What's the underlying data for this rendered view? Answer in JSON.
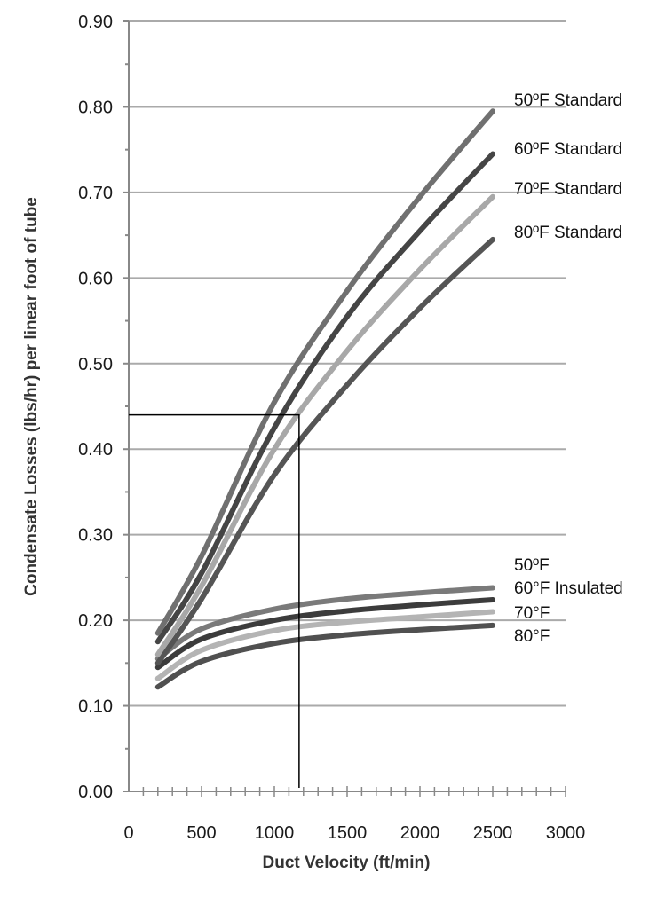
{
  "chart_data": {
    "type": "line",
    "title": "",
    "xlabel": "Duct Velocity (ft/min)",
    "ylabel": "Condensate Losses (lbs/hr) per linear foot of tube",
    "xlim": [
      0,
      3000
    ],
    "ylim": [
      0,
      0.9
    ],
    "x_ticks": [
      "0",
      "500",
      "1000",
      "1500",
      "2000",
      "2500",
      "3000"
    ],
    "y_ticks": [
      "0.00",
      "0.10",
      "0.20",
      "0.30",
      "0.40",
      "0.50",
      "0.60",
      "0.70",
      "0.80",
      "0.90"
    ],
    "grid": "horizontal",
    "series": [
      {
        "name": "50ºF Standard",
        "color": "#707070",
        "points": [
          [
            200,
            0.185
          ],
          [
            500,
            0.275
          ],
          [
            1000,
            0.455
          ],
          [
            1500,
            0.585
          ],
          [
            2000,
            0.695
          ],
          [
            2500,
            0.795
          ]
        ]
      },
      {
        "name": "60ºF Standard",
        "color": "#454545",
        "points": [
          [
            200,
            0.175
          ],
          [
            500,
            0.255
          ],
          [
            1000,
            0.425
          ],
          [
            1500,
            0.555
          ],
          [
            2000,
            0.655
          ],
          [
            2500,
            0.745
          ]
        ]
      },
      {
        "name": "70ºF Standard",
        "color": "#a8a8a8",
        "points": [
          [
            200,
            0.16
          ],
          [
            500,
            0.24
          ],
          [
            1000,
            0.4
          ],
          [
            1500,
            0.515
          ],
          [
            2000,
            0.61
          ],
          [
            2500,
            0.695
          ]
        ]
      },
      {
        "name": "80ºF Standard",
        "color": "#555555",
        "points": [
          [
            200,
            0.15
          ],
          [
            500,
            0.225
          ],
          [
            1000,
            0.37
          ],
          [
            1500,
            0.475
          ],
          [
            2000,
            0.565
          ],
          [
            2500,
            0.645
          ]
        ]
      },
      {
        "name": "50ºF",
        "color": "#7a7a7a",
        "points": [
          [
            200,
            0.155
          ],
          [
            500,
            0.19
          ],
          [
            1000,
            0.213
          ],
          [
            1500,
            0.225
          ],
          [
            2000,
            0.232
          ],
          [
            2500,
            0.238
          ]
        ]
      },
      {
        "name": "60°F Insulated",
        "color": "#3c3c3c",
        "points": [
          [
            200,
            0.145
          ],
          [
            500,
            0.178
          ],
          [
            1000,
            0.2
          ],
          [
            1500,
            0.211
          ],
          [
            2000,
            0.218
          ],
          [
            2500,
            0.224
          ]
        ]
      },
      {
        "name": "70°F",
        "color": "#b4b4b4",
        "points": [
          [
            200,
            0.132
          ],
          [
            500,
            0.165
          ],
          [
            1000,
            0.188
          ],
          [
            1500,
            0.198
          ],
          [
            2000,
            0.204
          ],
          [
            2500,
            0.21
          ]
        ]
      },
      {
        "name": "80°F",
        "color": "#505050",
        "points": [
          [
            200,
            0.122
          ],
          [
            500,
            0.152
          ],
          [
            1000,
            0.173
          ],
          [
            1500,
            0.183
          ],
          [
            2000,
            0.189
          ],
          [
            2500,
            0.194
          ]
        ]
      }
    ],
    "reference_lines": {
      "x": 1170,
      "y": 0.44
    }
  }
}
